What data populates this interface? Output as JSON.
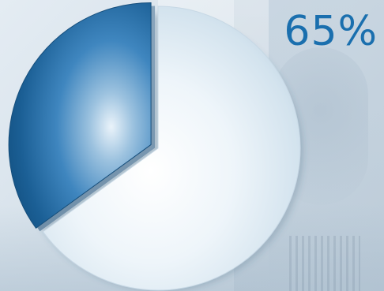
{
  "chart_data": {
    "type": "pie",
    "values": [
      65,
      35
    ],
    "colors": [
      "#e9f2f8",
      "#1b5f95"
    ],
    "data_labels": [
      "65%",
      ""
    ],
    "title": "",
    "legend": "none"
  }
}
